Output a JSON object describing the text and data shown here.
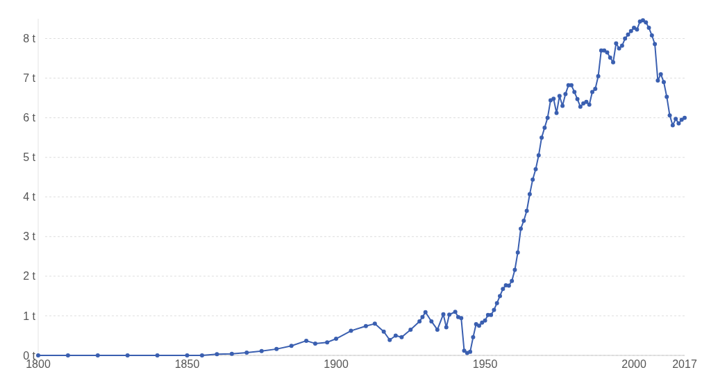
{
  "chart_data": {
    "type": "line",
    "x": [
      1800,
      1810,
      1820,
      1830,
      1840,
      1850,
      1855,
      1860,
      1865,
      1870,
      1875,
      1880,
      1885,
      1890,
      1893,
      1897,
      1900,
      1905,
      1910,
      1913,
      1916,
      1918,
      1920,
      1922,
      1925,
      1928,
      1929,
      1930,
      1932,
      1934,
      1936,
      1937,
      1938,
      1940,
      1941,
      1942,
      1943,
      1944,
      1945,
      1946,
      1947,
      1948,
      1949,
      1950,
      1951,
      1952,
      1953,
      1954,
      1955,
      1956,
      1957,
      1958,
      1959,
      1960,
      1961,
      1962,
      1963,
      1964,
      1965,
      1966,
      1967,
      1968,
      1969,
      1970,
      1971,
      1972,
      1973,
      1974,
      1975,
      1976,
      1977,
      1978,
      1979,
      1980,
      1981,
      1982,
      1983,
      1984,
      1985,
      1986,
      1987,
      1988,
      1989,
      1990,
      1991,
      1992,
      1993,
      1994,
      1995,
      1996,
      1997,
      1998,
      1999,
      2000,
      2001,
      2002,
      2003,
      2004,
      2005,
      2006,
      2007,
      2008,
      2009,
      2010,
      2011,
      2012,
      2013,
      2014,
      2015,
      2016,
      2017
    ],
    "series": [
      {
        "color": "#3a5fb0",
        "values": [
          0,
          0,
          0,
          0,
          0,
          0,
          0,
          0.03,
          0.04,
          0.07,
          0.11,
          0.16,
          0.24,
          0.37,
          0.3,
          0.33,
          0.42,
          0.62,
          0.74,
          0.8,
          0.6,
          0.39,
          0.5,
          0.46,
          0.65,
          0.86,
          0.97,
          1.09,
          0.86,
          0.65,
          1.04,
          0.71,
          1.03,
          1.1,
          0.97,
          0.94,
          0.12,
          0.06,
          0.09,
          0.46,
          0.79,
          0.75,
          0.83,
          0.88,
          1.02,
          1.02,
          1.15,
          1.32,
          1.5,
          1.68,
          1.77,
          1.76,
          1.88,
          2.16,
          2.6,
          3.2,
          3.4,
          3.65,
          4.07,
          4.44,
          4.7,
          5.05,
          5.5,
          5.75,
          6.0,
          6.44,
          6.48,
          6.12,
          6.55,
          6.3,
          6.6,
          6.82,
          6.82,
          6.65,
          6.47,
          6.28,
          6.36,
          6.4,
          6.33,
          6.65,
          6.73,
          7.05,
          7.7,
          7.7,
          7.65,
          7.52,
          7.4,
          7.88,
          7.75,
          7.82,
          8.0,
          8.1,
          8.19,
          8.27,
          8.23,
          8.43,
          8.46,
          8.41,
          8.27,
          8.08,
          7.86,
          6.94,
          7.1,
          6.9,
          6.53,
          6.06,
          5.81,
          5.97,
          5.86,
          5.95,
          6.0
        ]
      }
    ],
    "xlim": [
      1800,
      2017
    ],
    "xticks": [
      1800,
      1850,
      1900,
      1950,
      2000,
      2017
    ],
    "ylim": [
      0,
      8.5
    ],
    "yticks": [
      {
        "value": 0,
        "label": "0 t"
      },
      {
        "value": 1,
        "label": "1 t"
      },
      {
        "value": 2,
        "label": "2 t"
      },
      {
        "value": 3,
        "label": "3 t"
      },
      {
        "value": 4,
        "label": "4 t"
      },
      {
        "value": 5,
        "label": "5 t"
      },
      {
        "value": 6,
        "label": "6 t"
      },
      {
        "value": 7,
        "label": "7 t"
      },
      {
        "value": 8,
        "label": "8 t"
      }
    ],
    "grid": "y",
    "marker": "circle",
    "line_style": "solid"
  }
}
